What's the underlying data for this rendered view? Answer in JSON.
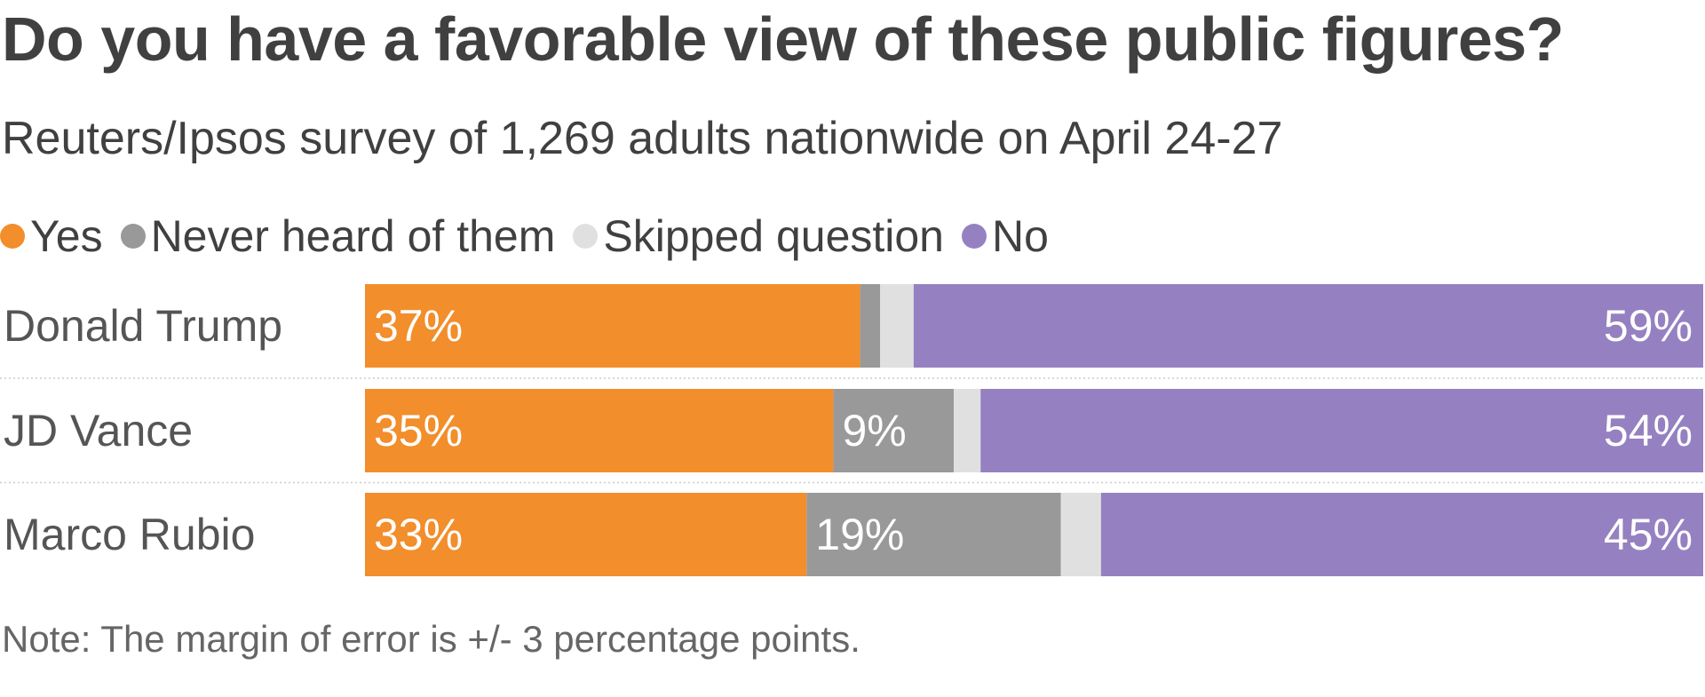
{
  "chart_data": {
    "type": "bar",
    "orientation": "horizontal",
    "stacked": true,
    "title": "Do you have a favorable view of these public figures?",
    "subtitle": "Reuters/Ipsos survey of 1,269 adults nationwide on April 24-27",
    "note": "Note: The margin of error is +/- 3 percentage points.",
    "legend_position": "top-left",
    "categories": [
      "Donald Trump",
      "JD Vance",
      "Marco Rubio"
    ],
    "series": [
      {
        "name": "Yes",
        "color": "#f28e2b",
        "values": [
          37,
          35,
          33
        ],
        "labels": [
          "37%",
          "35%",
          "33%"
        ]
      },
      {
        "name": "Never heard of them",
        "color": "#999999",
        "values": [
          1.5,
          9,
          19
        ],
        "labels": [
          "",
          "9%",
          "19%"
        ]
      },
      {
        "name": "Skipped question",
        "color": "#e0e0e0",
        "values": [
          2.5,
          2,
          3
        ],
        "labels": [
          "",
          "",
          ""
        ]
      },
      {
        "name": "No",
        "color": "#9581c1",
        "values": [
          59,
          54,
          45
        ],
        "labels": [
          "59%",
          "54%",
          "45%"
        ]
      }
    ],
    "xlim": [
      0,
      100
    ],
    "grid": false
  }
}
